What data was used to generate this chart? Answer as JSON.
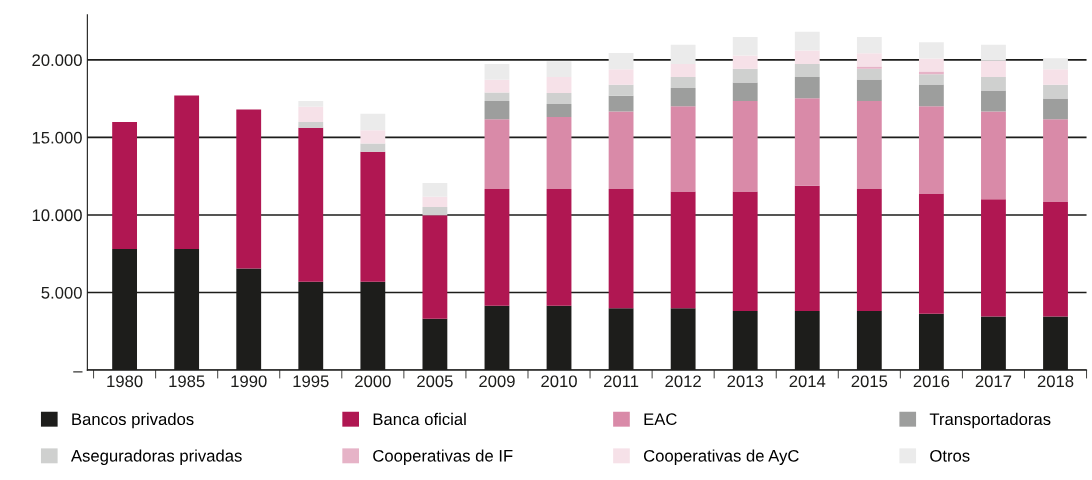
{
  "chart_data": {
    "type": "bar",
    "stacked": true,
    "categories": [
      "1980",
      "1985",
      "1990",
      "1995",
      "2000",
      "2005",
      "2009",
      "2010",
      "2011",
      "2012",
      "2013",
      "2014",
      "2015",
      "2016",
      "2017",
      "2018"
    ],
    "series": [
      {
        "name": "Bancos privados",
        "color": "#1d1d1b",
        "values": [
          7800,
          7800,
          6550,
          5700,
          5700,
          3310,
          4150,
          4150,
          3980,
          3980,
          3810,
          3810,
          3810,
          3630,
          3460,
          3460
        ]
      },
      {
        "name": "Banca oficial",
        "color": "#b01752",
        "values": [
          8200,
          9900,
          10250,
          9930,
          8380,
          6670,
          7530,
          7530,
          7700,
          7530,
          7700,
          8080,
          7870,
          7750,
          7550,
          7380
        ]
      },
      {
        "name": "EAC",
        "color": "#d98aa8",
        "values": [
          0,
          0,
          0,
          0,
          0,
          0,
          4490,
          4640,
          4990,
          5500,
          5840,
          5640,
          5670,
          5630,
          5660,
          5330
        ]
      },
      {
        "name": "Transportadoras",
        "color": "#9d9e9d",
        "values": [
          0,
          0,
          0,
          0,
          0,
          0,
          1180,
          840,
          1010,
          1180,
          1190,
          1370,
          1380,
          1400,
          1350,
          1340
        ]
      },
      {
        "name": "Aseguradoras privadas",
        "color": "#cfd0cf",
        "values": [
          0,
          0,
          0,
          370,
          520,
          540,
          540,
          710,
          710,
          710,
          880,
          840,
          690,
          660,
          880,
          880
        ]
      },
      {
        "name": "Cooperativas de IF",
        "color": "#e6b3c7",
        "values": [
          0,
          0,
          0,
          0,
          0,
          0,
          0,
          0,
          0,
          0,
          0,
          0,
          150,
          180,
          0,
          0
        ]
      },
      {
        "name": "Cooperativas de AyC",
        "color": "#f6e1e8",
        "values": [
          0,
          0,
          0,
          970,
          860,
          660,
          820,
          1030,
          1010,
          840,
          860,
          860,
          860,
          840,
          1040,
          1010
        ]
      },
      {
        "name": "Otros",
        "color": "#ebebeb",
        "values": [
          0,
          0,
          0,
          380,
          1060,
          880,
          1030,
          1010,
          1050,
          1230,
          1200,
          1210,
          1050,
          1050,
          1030,
          710
        ]
      }
    ],
    "ylim": [
      0,
      22900
    ],
    "yticks": [
      {
        "value": 0,
        "label": "–"
      },
      {
        "value": 5000,
        "label": "5.000"
      },
      {
        "value": 10000,
        "label": "10.000"
      },
      {
        "value": 15000,
        "label": "15.000"
      },
      {
        "value": 20000,
        "label": "20.000"
      }
    ],
    "grid": "y",
    "legend": "bottom"
  }
}
